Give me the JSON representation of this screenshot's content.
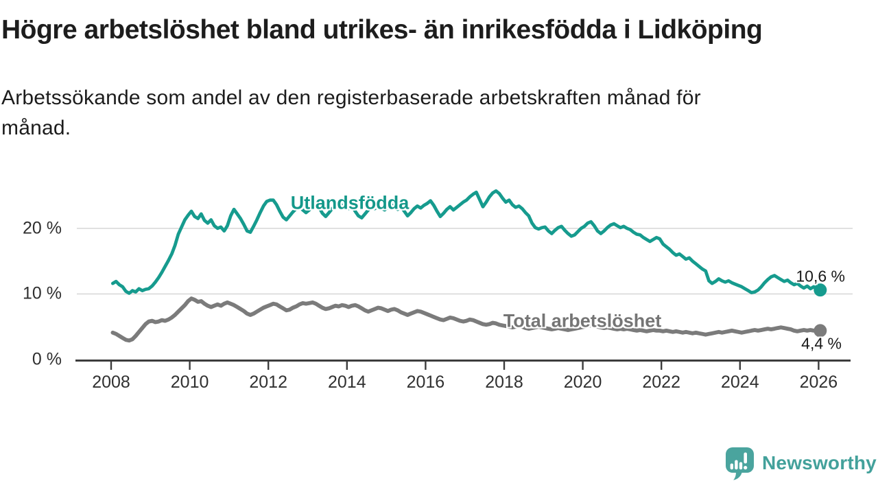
{
  "chart_data": {
    "type": "line",
    "title": "Högre arbetslöshet bland utrikes- än inrikesfödda i Lidköping",
    "subtitle_lines": [
      "Arbetssökande som andel av den registerbaserade arbetskraften månad för",
      "månad."
    ],
    "xlabel": "",
    "ylabel": "",
    "grid": "horizontal",
    "legend": "direct-labels-on-lines",
    "xlim": [
      2007.1,
      2026.8
    ],
    "ylim": [
      0,
      27.4
    ],
    "x_start": 2008.042,
    "x_step": 0.0833333,
    "x_tick_values": [
      2008,
      2010,
      2012,
      2014,
      2016,
      2018,
      2020,
      2022,
      2024,
      2026
    ],
    "x_tick_labels": [
      "2008",
      "2010",
      "2012",
      "2014",
      "2016",
      "2018",
      "2020",
      "2022",
      "2024",
      "2026"
    ],
    "y_tick_values": [
      0,
      10,
      20
    ],
    "y_tick_labels": [
      "0 %",
      "10 %",
      "20 %"
    ],
    "axis_color": "#3c3c3c",
    "gridline_color": "#d9d9d9",
    "series": [
      {
        "name": "Utlandsfödda",
        "color": "#169b8e",
        "line_width": 4.8,
        "end_label": "10,6 %",
        "end_value": 10.6,
        "values": [
          11.6,
          11.9,
          11.4,
          11.1,
          10.4,
          10.1,
          10.5,
          10.3,
          10.8,
          10.5,
          10.7,
          10.8,
          11.2,
          11.8,
          12.5,
          13.3,
          14.2,
          15.1,
          16.1,
          17.4,
          19.1,
          20.2,
          21.3,
          22.0,
          22.6,
          21.8,
          21.5,
          22.2,
          21.2,
          20.8,
          21.3,
          20.4,
          20.0,
          20.2,
          19.6,
          20.4,
          21.9,
          22.9,
          22.2,
          21.5,
          20.6,
          19.6,
          19.4,
          20.3,
          21.3,
          22.4,
          23.4,
          24.1,
          24.3,
          24.3,
          23.6,
          22.6,
          21.7,
          21.3,
          21.9,
          22.5,
          23.0,
          23.3,
          22.8,
          22.4,
          22.8,
          23.4,
          23.8,
          23.2,
          22.3,
          21.8,
          22.4,
          23.0,
          23.5,
          23.8,
          23.5,
          23.2,
          23.0,
          23.4,
          22.6,
          21.9,
          21.6,
          22.2,
          22.8,
          23.2,
          23.0,
          23.4,
          23.1,
          22.8,
          23.2,
          23.6,
          23.3,
          22.9,
          23.3,
          22.6,
          21.9,
          22.4,
          23.0,
          23.4,
          23.1,
          23.5,
          23.8,
          24.2,
          23.5,
          22.6,
          21.8,
          22.3,
          22.9,
          23.3,
          22.8,
          23.2,
          23.6,
          24.0,
          24.3,
          24.8,
          25.2,
          25.5,
          24.4,
          23.3,
          24.0,
          24.8,
          25.4,
          25.7,
          25.3,
          24.6,
          24.0,
          24.3,
          23.6,
          23.2,
          23.4,
          23.0,
          22.4,
          21.9,
          20.8,
          20.1,
          19.9,
          20.1,
          20.2,
          19.6,
          19.2,
          19.7,
          20.1,
          20.3,
          19.7,
          19.2,
          18.8,
          19.0,
          19.5,
          20.0,
          20.3,
          20.8,
          21.0,
          20.4,
          19.6,
          19.2,
          19.6,
          20.1,
          20.5,
          20.7,
          20.4,
          20.1,
          20.3,
          20.0,
          19.8,
          19.4,
          19.1,
          19.0,
          18.6,
          18.3,
          18.0,
          18.3,
          18.6,
          18.4,
          17.6,
          17.2,
          16.8,
          16.3,
          15.9,
          16.1,
          15.7,
          15.3,
          15.5,
          15.0,
          14.6,
          14.2,
          13.8,
          13.5,
          12.0,
          11.6,
          11.9,
          12.3,
          12.0,
          11.8,
          12.0,
          11.7,
          11.5,
          11.3,
          11.1,
          10.8,
          10.5,
          10.2,
          10.3,
          10.6,
          11.1,
          11.7,
          12.2,
          12.6,
          12.8,
          12.5,
          12.2,
          11.9,
          12.1,
          11.7,
          11.4,
          11.6,
          11.2,
          10.9,
          11.2,
          10.8,
          11.1,
          10.8,
          10.6
        ]
      },
      {
        "name": "Total arbetslöshet",
        "color": "#7b7b7b",
        "line_width": 5.8,
        "end_label": "4,4 %",
        "end_value": 4.4,
        "values": [
          4.1,
          3.9,
          3.6,
          3.3,
          3.0,
          2.9,
          3.1,
          3.6,
          4.2,
          4.8,
          5.4,
          5.8,
          5.9,
          5.7,
          5.8,
          6.0,
          5.9,
          6.1,
          6.4,
          6.8,
          7.3,
          7.8,
          8.3,
          8.9,
          9.3,
          9.1,
          8.8,
          8.9,
          8.5,
          8.2,
          8.0,
          8.2,
          8.4,
          8.2,
          8.5,
          8.7,
          8.5,
          8.3,
          8.0,
          7.7,
          7.4,
          7.0,
          6.8,
          7.0,
          7.3,
          7.6,
          7.9,
          8.1,
          8.3,
          8.5,
          8.4,
          8.1,
          7.8,
          7.5,
          7.6,
          7.9,
          8.1,
          8.4,
          8.6,
          8.5,
          8.6,
          8.7,
          8.5,
          8.2,
          7.9,
          7.7,
          7.8,
          8.0,
          8.2,
          8.1,
          8.3,
          8.2,
          8.0,
          8.2,
          8.3,
          8.1,
          7.8,
          7.5,
          7.3,
          7.5,
          7.7,
          7.9,
          7.8,
          7.6,
          7.4,
          7.6,
          7.7,
          7.5,
          7.2,
          7.0,
          6.8,
          7.0,
          7.2,
          7.4,
          7.3,
          7.1,
          6.9,
          6.7,
          6.5,
          6.3,
          6.1,
          6.0,
          6.2,
          6.4,
          6.3,
          6.1,
          5.9,
          5.8,
          5.9,
          6.1,
          6.0,
          5.8,
          5.6,
          5.4,
          5.3,
          5.4,
          5.6,
          5.5,
          5.3,
          5.2,
          5.1,
          5.0,
          4.9,
          5.0,
          5.1,
          5.0,
          4.8,
          4.7,
          4.8,
          4.9,
          5.0,
          4.9,
          4.8,
          4.7,
          4.6,
          4.7,
          4.8,
          4.7,
          4.6,
          4.5,
          4.6,
          4.7,
          4.8,
          4.9,
          5.0,
          5.1,
          5.2,
          5.1,
          5.0,
          4.9,
          4.8,
          4.9,
          4.8,
          4.7,
          4.6,
          4.7,
          4.6,
          4.7,
          4.6,
          4.5,
          4.4,
          4.5,
          4.4,
          4.3,
          4.4,
          4.5,
          4.4,
          4.4,
          4.3,
          4.4,
          4.3,
          4.2,
          4.3,
          4.2,
          4.1,
          4.2,
          4.1,
          4.0,
          4.1,
          4.0,
          3.9,
          3.8,
          3.9,
          4.0,
          4.1,
          4.2,
          4.1,
          4.2,
          4.3,
          4.4,
          4.3,
          4.2,
          4.1,
          4.2,
          4.3,
          4.4,
          4.5,
          4.4,
          4.5,
          4.6,
          4.7,
          4.6,
          4.7,
          4.8,
          4.9,
          4.8,
          4.7,
          4.6,
          4.4,
          4.3,
          4.4,
          4.5,
          4.4,
          4.5,
          4.4,
          4.4,
          4.4
        ]
      }
    ]
  },
  "footer": {
    "brand": "Newsworthy"
  }
}
